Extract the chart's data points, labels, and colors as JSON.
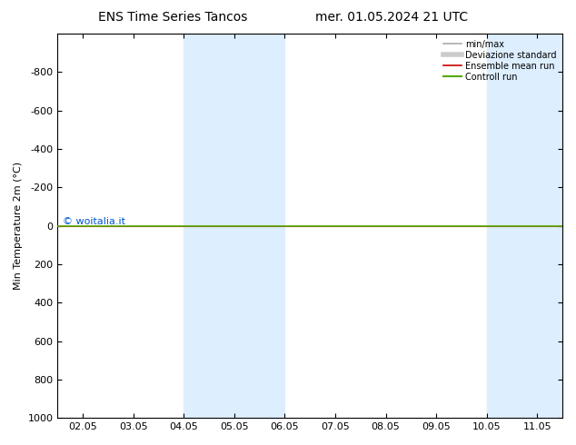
{
  "title_left": "ENS Time Series Tancos",
  "title_right": "mer. 01.05.2024 21 UTC",
  "ylabel": "Min Temperature 2m (°C)",
  "xtick_labels": [
    "02.05",
    "03.05",
    "04.05",
    "05.05",
    "06.05",
    "07.05",
    "08.05",
    "09.05",
    "10.05",
    "11.05"
  ],
  "xtick_positions": [
    0,
    1,
    2,
    3,
    4,
    5,
    6,
    7,
    8,
    9
  ],
  "ylim_bottom": -1000,
  "ylim_top": 1000,
  "yticks": [
    -800,
    -600,
    -400,
    -200,
    0,
    200,
    400,
    600,
    800,
    1000
  ],
  "shaded_bands": [
    [
      2,
      3
    ],
    [
      3,
      4
    ],
    [
      8,
      9
    ],
    [
      9,
      10
    ]
  ],
  "shade_color": "#ddeeff",
  "green_line_y": 0,
  "green_line_color": "#55aa00",
  "red_line_y": 0,
  "red_line_color": "#cc0000",
  "background_color": "#ffffff",
  "watermark": "© woitalia.it",
  "watermark_color": "#0055cc",
  "legend_labels": [
    "min/max",
    "Deviazione standard",
    "Ensemble mean run",
    "Controll run"
  ],
  "legend_line_colors": [
    "#aaaaaa",
    "#cccccc",
    "#cc0000",
    "#55aa00"
  ],
  "title_fontsize": 10,
  "axis_fontsize": 8,
  "tick_fontsize": 8
}
